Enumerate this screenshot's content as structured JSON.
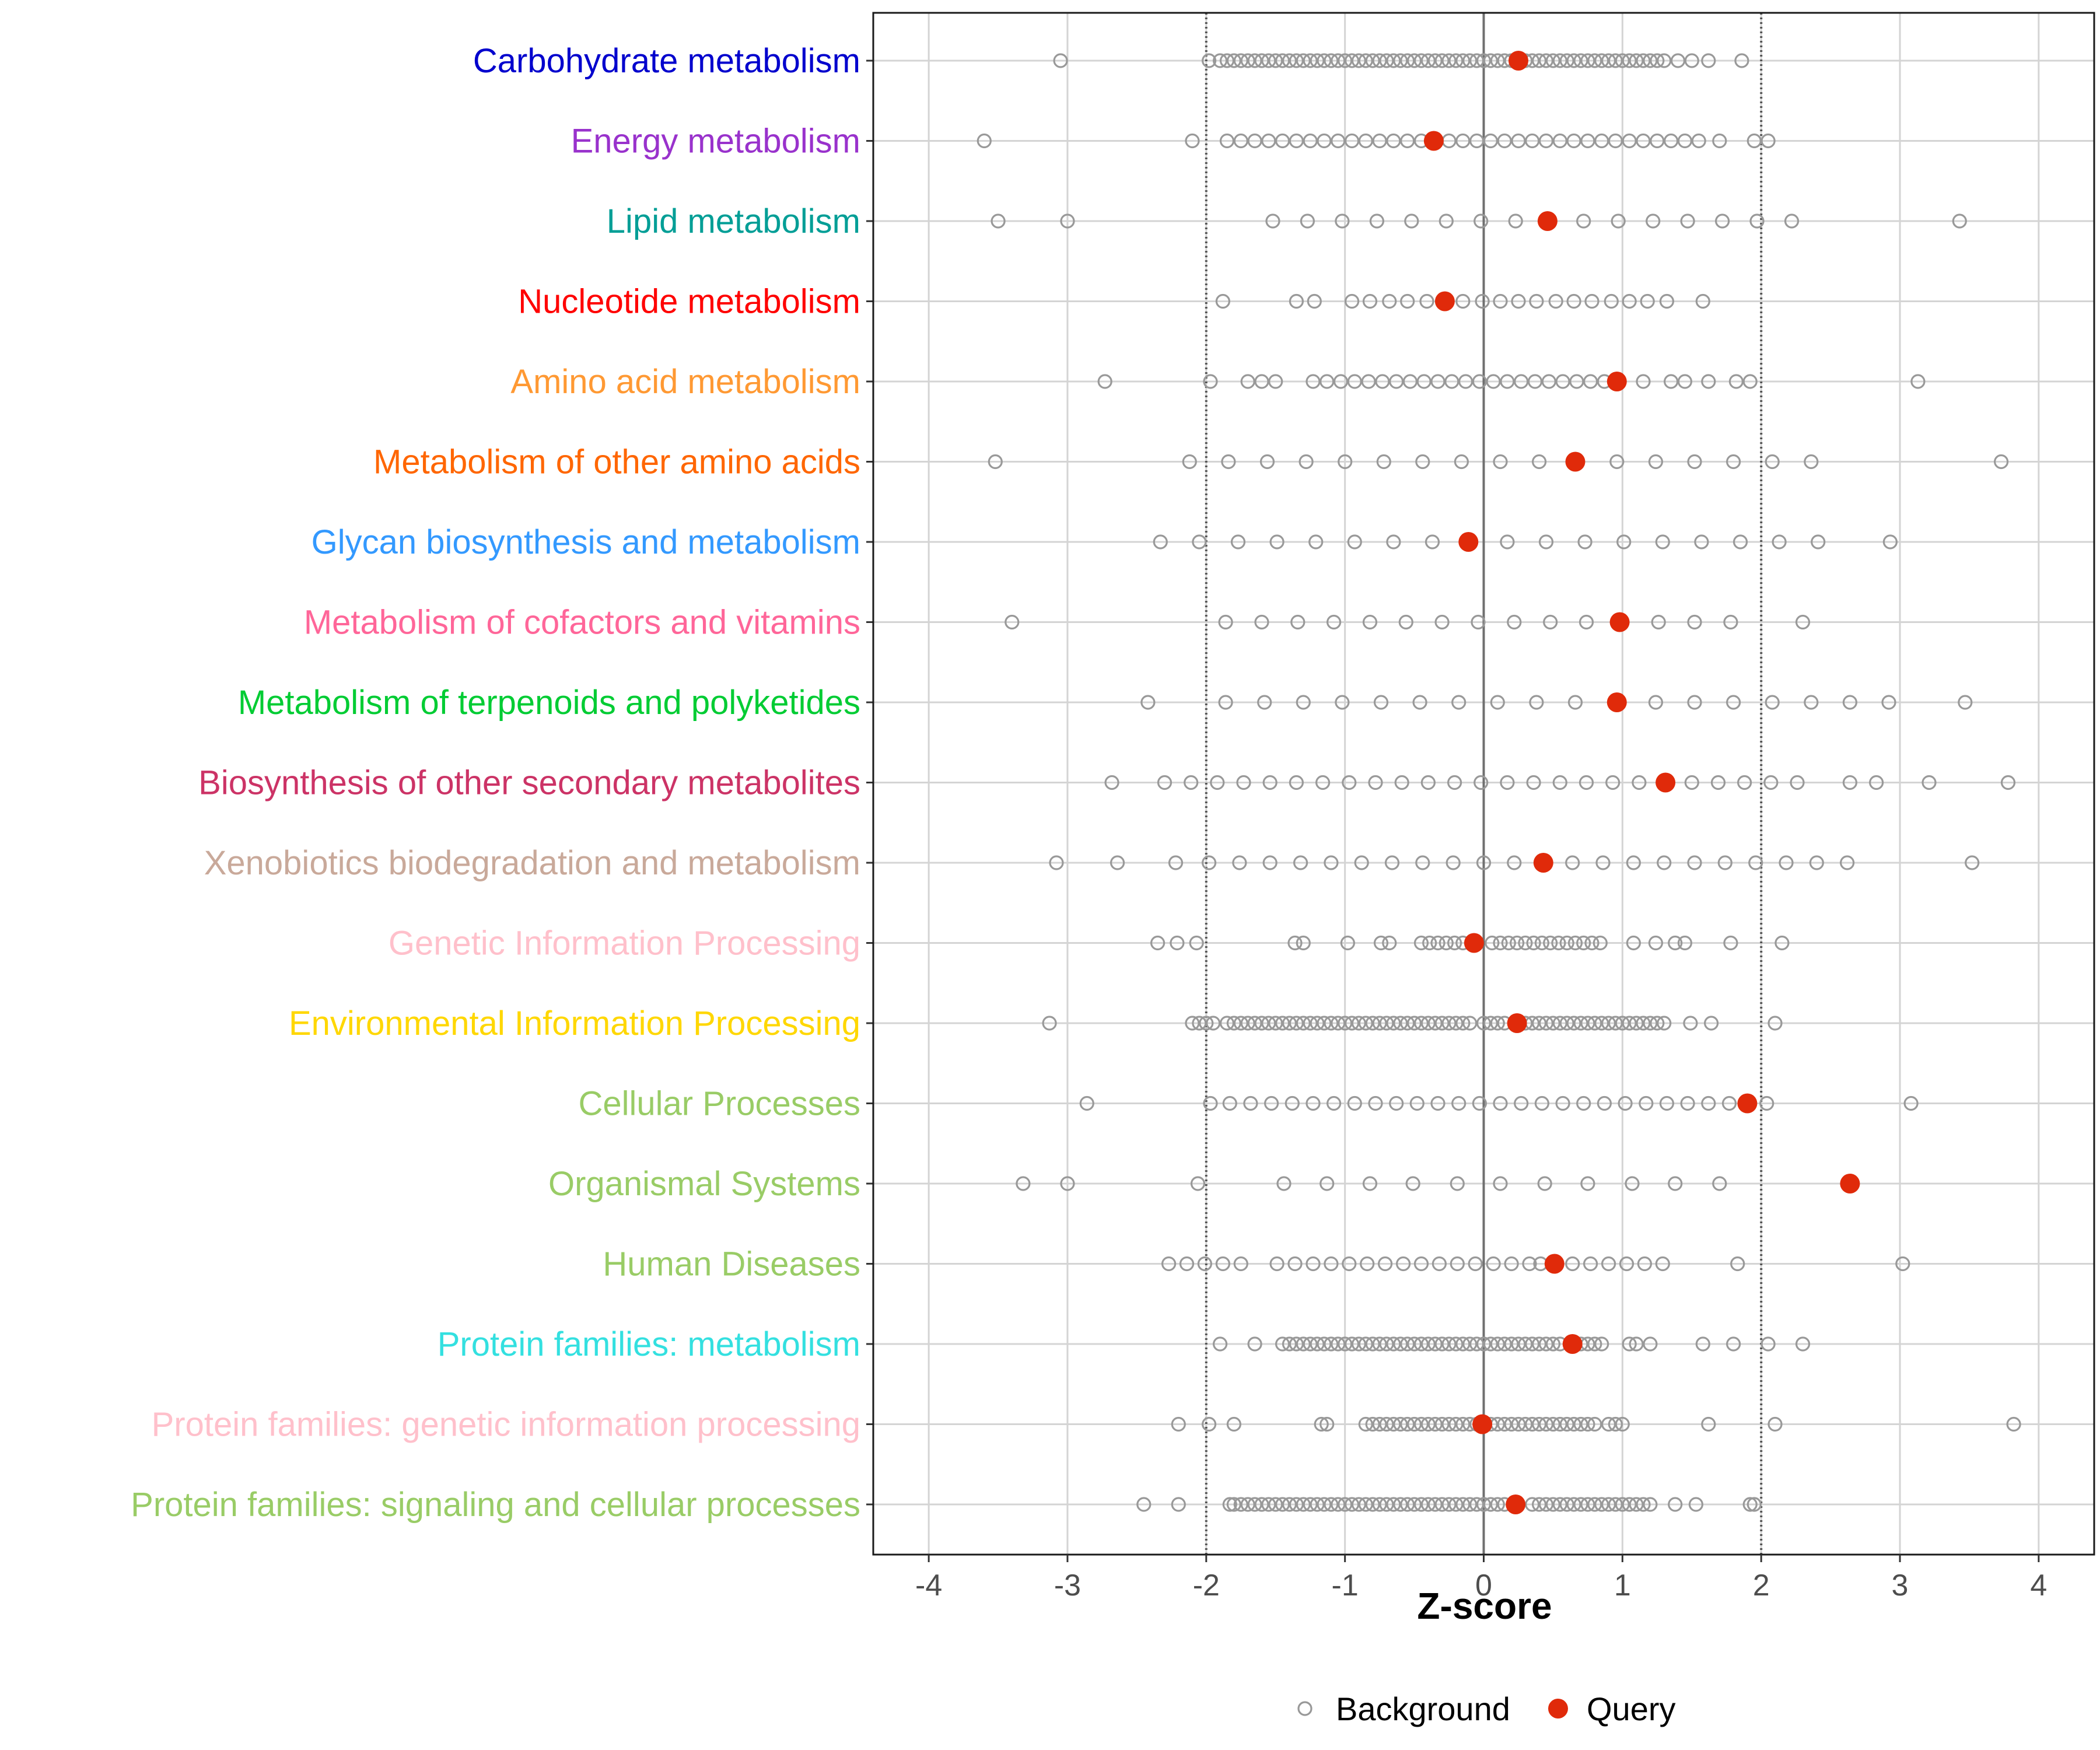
{
  "chart_data": {
    "type": "scatter",
    "title": "",
    "xlabel": "Z-score",
    "ylabel": "",
    "xlim": [
      -4.4,
      4.4
    ],
    "x_ticks": [
      -4,
      -3,
      -2,
      -1,
      0,
      1,
      2,
      3,
      4
    ],
    "x_tick_labels": [
      "-4",
      "-3",
      "-2",
      "-1",
      "0",
      "1",
      "2",
      "3",
      "4"
    ],
    "reference_lines": {
      "solid": [
        0
      ],
      "dotted": [
        -2,
        2
      ]
    },
    "grid": true,
    "legend": {
      "position": "bottom",
      "entries": [
        {
          "label": "Background",
          "style": "open-circle",
          "color": "#999999"
        },
        {
          "label": "Query",
          "style": "filled-circle",
          "color": "#e02a0a"
        }
      ]
    },
    "categories": [
      {
        "label": "Carbohydrate metabolism",
        "color": "#0000cd",
        "query": 0.25,
        "background": [
          -3.05,
          -1.98,
          -1.9,
          -1.85,
          -1.8,
          -1.75,
          -1.7,
          -1.65,
          -1.6,
          -1.55,
          -1.5,
          -1.45,
          -1.4,
          -1.35,
          -1.3,
          -1.25,
          -1.2,
          -1.15,
          -1.1,
          -1.05,
          -1.0,
          -0.95,
          -0.9,
          -0.85,
          -0.8,
          -0.75,
          -0.7,
          -0.65,
          -0.6,
          -0.55,
          -0.5,
          -0.45,
          -0.4,
          -0.35,
          -0.3,
          -0.25,
          -0.2,
          -0.15,
          -0.1,
          -0.05,
          0.0,
          0.05,
          0.1,
          0.15,
          0.2,
          0.3,
          0.35,
          0.4,
          0.45,
          0.5,
          0.55,
          0.6,
          0.65,
          0.7,
          0.75,
          0.8,
          0.85,
          0.9,
          0.95,
          1.0,
          1.05,
          1.1,
          1.15,
          1.2,
          1.25,
          1.3,
          1.4,
          1.5,
          1.62,
          1.86
        ]
      },
      {
        "label": "Energy metabolism",
        "color": "#9932cc",
        "query": -0.36,
        "background": [
          -3.6,
          -2.1,
          -1.85,
          -1.75,
          -1.65,
          -1.55,
          -1.45,
          -1.35,
          -1.25,
          -1.15,
          -1.05,
          -0.95,
          -0.85,
          -0.75,
          -0.65,
          -0.55,
          -0.45,
          -0.25,
          -0.15,
          -0.05,
          0.05,
          0.15,
          0.25,
          0.35,
          0.45,
          0.55,
          0.65,
          0.75,
          0.85,
          0.95,
          1.05,
          1.15,
          1.25,
          1.35,
          1.45,
          1.55,
          1.7,
          1.95,
          2.05
        ]
      },
      {
        "label": "Lipid metabolism",
        "color": "#009e96",
        "query": 0.46,
        "background": [
          -3.5,
          -3.0,
          -1.52,
          -1.27,
          -1.02,
          -0.77,
          -0.52,
          -0.27,
          -0.02,
          0.23,
          0.72,
          0.97,
          1.22,
          1.47,
          1.72,
          1.97,
          2.22,
          3.43
        ]
      },
      {
        "label": "Nucleotide metabolism",
        "color": "#ff0000",
        "query": -0.28,
        "background": [
          -1.88,
          -1.35,
          -1.22,
          -0.95,
          -0.82,
          -0.68,
          -0.55,
          -0.41,
          -0.15,
          -0.01,
          0.12,
          0.25,
          0.38,
          0.52,
          0.65,
          0.78,
          0.92,
          1.05,
          1.18,
          1.32,
          1.58
        ]
      },
      {
        "label": "Amino acid metabolism",
        "color": "#ff9933",
        "query": 0.96,
        "background": [
          -2.73,
          -1.97,
          -1.7,
          -1.6,
          -1.5,
          -1.23,
          -1.13,
          -1.03,
          -0.93,
          -0.83,
          -0.73,
          -0.63,
          -0.53,
          -0.43,
          -0.33,
          -0.23,
          -0.13,
          -0.03,
          0.07,
          0.17,
          0.27,
          0.37,
          0.47,
          0.57,
          0.67,
          0.77,
          0.87,
          1.15,
          1.35,
          1.45,
          1.62,
          1.82,
          1.92,
          3.13
        ]
      },
      {
        "label": "Metabolism of other amino acids",
        "color": "#ff6600",
        "query": 0.66,
        "background": [
          -3.52,
          -2.12,
          -1.84,
          -1.56,
          -1.28,
          -1.0,
          -0.72,
          -0.44,
          -0.16,
          0.12,
          0.4,
          0.96,
          1.24,
          1.52,
          1.8,
          2.08,
          2.36,
          3.73
        ]
      },
      {
        "label": "Glycan biosynthesis and metabolism",
        "color": "#3399ff",
        "query": -0.11,
        "background": [
          -2.33,
          -2.05,
          -1.77,
          -1.49,
          -1.21,
          -0.93,
          -0.65,
          -0.37,
          0.17,
          0.45,
          0.73,
          1.01,
          1.29,
          1.57,
          1.85,
          2.13,
          2.41,
          2.93
        ]
      },
      {
        "label": "Metabolism of cofactors and vitamins",
        "color": "#ff6699",
        "query": 0.98,
        "background": [
          -3.4,
          -1.86,
          -1.6,
          -1.34,
          -1.08,
          -0.82,
          -0.56,
          -0.3,
          -0.04,
          0.22,
          0.48,
          0.74,
          1.26,
          1.52,
          1.78,
          2.3
        ]
      },
      {
        "label": "Metabolism of terpenoids and polyketides",
        "color": "#00cc33",
        "query": 0.96,
        "background": [
          -2.42,
          -1.86,
          -1.58,
          -1.3,
          -1.02,
          -0.74,
          -0.46,
          -0.18,
          0.1,
          0.38,
          0.66,
          1.24,
          1.52,
          1.8,
          2.08,
          2.36,
          2.64,
          2.92,
          3.47
        ]
      },
      {
        "label": "Biosynthesis of other secondary metabolites",
        "color": "#cc3366",
        "query": 1.31,
        "background": [
          -2.68,
          -2.3,
          -2.11,
          -1.92,
          -1.73,
          -1.54,
          -1.35,
          -1.16,
          -0.97,
          -0.78,
          -0.59,
          -0.4,
          -0.21,
          -0.02,
          0.17,
          0.36,
          0.55,
          0.74,
          0.93,
          1.12,
          1.5,
          1.69,
          1.88,
          2.07,
          2.26,
          2.64,
          2.83,
          3.21,
          3.78
        ]
      },
      {
        "label": "Xenobiotics biodegradation and metabolism",
        "color": "#c9a99a",
        "query": 0.43,
        "background": [
          -3.08,
          -2.64,
          -2.22,
          -1.98,
          -1.76,
          -1.54,
          -1.32,
          -1.1,
          -0.88,
          -0.66,
          -0.44,
          -0.22,
          0.0,
          0.22,
          0.64,
          0.86,
          1.08,
          1.3,
          1.52,
          1.74,
          1.96,
          2.18,
          2.4,
          2.62,
          3.52
        ]
      },
      {
        "label": "Genetic Information Processing",
        "color": "#ffc0cb",
        "query": -0.07,
        "background": [
          -2.35,
          -2.21,
          -2.07,
          -1.36,
          -1.3,
          -0.98,
          -0.74,
          -0.68,
          -0.45,
          -0.39,
          -0.33,
          -0.27,
          -0.21,
          -0.15,
          0.06,
          0.12,
          0.18,
          0.24,
          0.3,
          0.36,
          0.42,
          0.48,
          0.54,
          0.6,
          0.66,
          0.72,
          0.78,
          0.84,
          1.08,
          1.24,
          1.38,
          1.45,
          1.78,
          2.15
        ]
      },
      {
        "label": "Environmental Information Processing",
        "color": "#ffd700",
        "query": 0.24,
        "background": [
          -3.13,
          -2.1,
          -2.05,
          -2.0,
          -1.95,
          -1.85,
          -1.8,
          -1.75,
          -1.7,
          -1.65,
          -1.6,
          -1.55,
          -1.5,
          -1.45,
          -1.4,
          -1.35,
          -1.3,
          -1.25,
          -1.2,
          -1.15,
          -1.1,
          -1.05,
          -1.0,
          -0.95,
          -0.9,
          -0.85,
          -0.8,
          -0.75,
          -0.7,
          -0.65,
          -0.6,
          -0.55,
          -0.5,
          -0.45,
          -0.4,
          -0.35,
          -0.3,
          -0.25,
          -0.2,
          -0.15,
          -0.1,
          0.0,
          0.05,
          0.1,
          0.15,
          0.3,
          0.35,
          0.4,
          0.45,
          0.5,
          0.55,
          0.6,
          0.65,
          0.7,
          0.75,
          0.8,
          0.85,
          0.9,
          0.95,
          1.0,
          1.05,
          1.1,
          1.15,
          1.2,
          1.25,
          1.3,
          1.49,
          1.64,
          2.1
        ]
      },
      {
        "label": "Cellular Processes",
        "color": "#99cc66",
        "query": 1.9,
        "background": [
          -2.86,
          -1.97,
          -1.83,
          -1.68,
          -1.53,
          -1.38,
          -1.23,
          -1.08,
          -0.93,
          -0.78,
          -0.63,
          -0.48,
          -0.33,
          -0.18,
          -0.03,
          0.12,
          0.27,
          0.42,
          0.57,
          0.72,
          0.87,
          1.02,
          1.17,
          1.32,
          1.47,
          1.62,
          1.77,
          2.04,
          3.08
        ]
      },
      {
        "label": "Organismal Systems",
        "color": "#99cc66",
        "query": 2.64,
        "background": [
          -3.32,
          -3.0,
          -2.06,
          -1.44,
          -1.13,
          -0.82,
          -0.51,
          -0.19,
          0.12,
          0.44,
          0.75,
          1.07,
          1.38,
          1.7
        ]
      },
      {
        "label": "Human Diseases",
        "color": "#99cc66",
        "query": 0.51,
        "background": [
          -2.27,
          -2.14,
          -2.01,
          -1.88,
          -1.75,
          -1.49,
          -1.36,
          -1.23,
          -1.1,
          -0.97,
          -0.84,
          -0.71,
          -0.58,
          -0.45,
          -0.32,
          -0.19,
          -0.06,
          0.07,
          0.2,
          0.33,
          0.41,
          0.64,
          0.77,
          0.9,
          1.03,
          1.16,
          1.29,
          1.83,
          3.02
        ]
      },
      {
        "label": "Protein families: metabolism",
        "color": "#33e0e0",
        "query": 0.64,
        "background": [
          -1.9,
          -1.65,
          -1.45,
          -1.4,
          -1.35,
          -1.3,
          -1.25,
          -1.2,
          -1.15,
          -1.1,
          -1.05,
          -1.0,
          -0.95,
          -0.9,
          -0.85,
          -0.8,
          -0.75,
          -0.7,
          -0.65,
          -0.6,
          -0.55,
          -0.5,
          -0.45,
          -0.4,
          -0.35,
          -0.3,
          -0.25,
          -0.2,
          -0.15,
          -0.1,
          -0.05,
          0.0,
          0.05,
          0.1,
          0.15,
          0.2,
          0.25,
          0.3,
          0.35,
          0.4,
          0.45,
          0.5,
          0.55,
          0.7,
          0.75,
          0.8,
          0.85,
          1.05,
          1.1,
          1.2,
          1.58,
          1.8,
          2.05,
          2.3
        ]
      },
      {
        "label": "Protein families: genetic information processing",
        "color": "#ffc0cb",
        "query": -0.01,
        "background": [
          -2.2,
          -1.98,
          -1.8,
          -1.17,
          -1.13,
          -0.85,
          -0.8,
          -0.75,
          -0.7,
          -0.65,
          -0.6,
          -0.55,
          -0.5,
          -0.45,
          -0.4,
          -0.35,
          -0.3,
          -0.25,
          -0.2,
          -0.15,
          -0.1,
          -0.05,
          0.05,
          0.1,
          0.15,
          0.2,
          0.25,
          0.3,
          0.35,
          0.4,
          0.45,
          0.5,
          0.55,
          0.6,
          0.65,
          0.7,
          0.75,
          0.8,
          0.9,
          0.95,
          1.0,
          1.62,
          2.1,
          3.82
        ]
      },
      {
        "label": "Protein families: signaling and cellular processes",
        "color": "#99cc66",
        "query": 0.23,
        "background": [
          -2.45,
          -2.2,
          -1.83,
          -1.8,
          -1.75,
          -1.7,
          -1.65,
          -1.6,
          -1.55,
          -1.5,
          -1.45,
          -1.4,
          -1.35,
          -1.3,
          -1.25,
          -1.2,
          -1.15,
          -1.1,
          -1.05,
          -1.0,
          -0.95,
          -0.9,
          -0.85,
          -0.8,
          -0.75,
          -0.7,
          -0.65,
          -0.6,
          -0.55,
          -0.5,
          -0.45,
          -0.4,
          -0.35,
          -0.3,
          -0.25,
          -0.2,
          -0.15,
          -0.1,
          -0.05,
          0.0,
          0.05,
          0.1,
          0.15,
          0.35,
          0.4,
          0.45,
          0.5,
          0.55,
          0.6,
          0.65,
          0.7,
          0.75,
          0.8,
          0.85,
          0.9,
          0.95,
          1.0,
          1.05,
          1.1,
          1.15,
          1.2,
          1.38,
          1.53,
          1.92,
          1.95
        ]
      }
    ]
  }
}
